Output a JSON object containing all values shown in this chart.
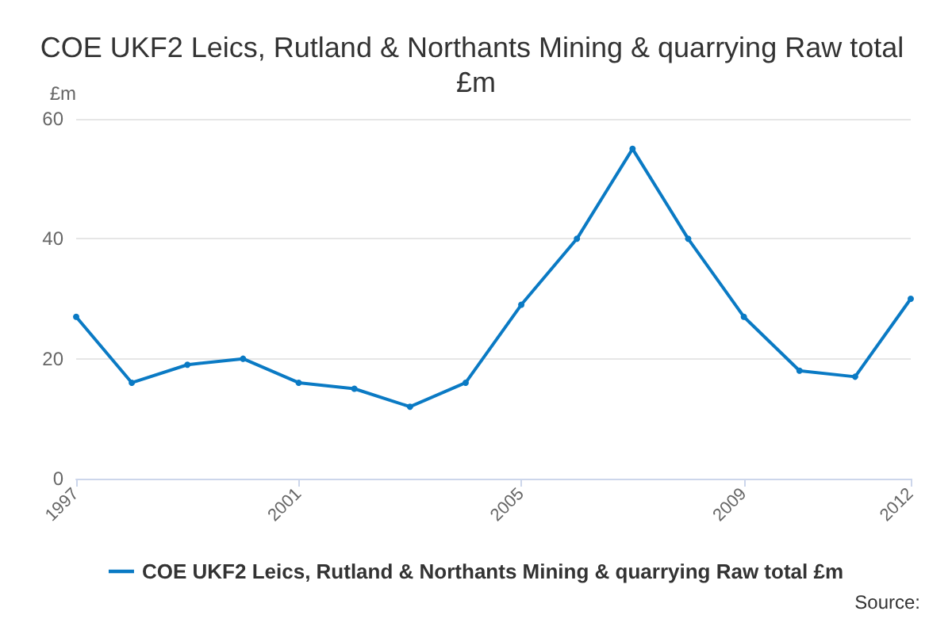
{
  "chart_data": {
    "type": "line",
    "title": "COE UKF2 Leics, Rutland & Northants Mining & quarrying Raw total £m",
    "ylabel": "£m",
    "categories": [
      "1997",
      null,
      null,
      null,
      "2001",
      null,
      null,
      null,
      "2005",
      null,
      null,
      null,
      "2009",
      null,
      null,
      "2012"
    ],
    "series": [
      {
        "name": "COE UKF2 Leics, Rutland & Northants Mining & quarrying Raw total £m",
        "color": "#0a7ac4",
        "values": [
          27,
          16,
          19,
          20,
          16,
          15,
          12,
          16,
          29,
          40,
          55,
          40,
          27,
          18,
          17,
          30
        ]
      }
    ],
    "ylim": [
      0,
      60
    ],
    "yticks": [
      0,
      20,
      40,
      60
    ],
    "grid": "y",
    "legend": "bottom",
    "marker": "circle",
    "line_style": "solid",
    "annotations": [
      "Source:"
    ]
  }
}
